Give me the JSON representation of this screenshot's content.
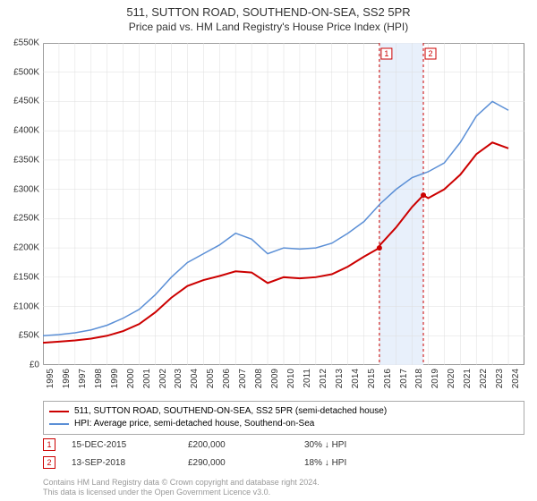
{
  "title": "511, SUTTON ROAD, SOUTHEND-ON-SEA, SS2 5PR",
  "subtitle": "Price paid vs. HM Land Registry's House Price Index (HPI)",
  "chart": {
    "type": "line",
    "background_color": "#ffffff",
    "axis_color": "#888888",
    "grid_color": "#dddddd",
    "label_fontsize": 10,
    "title_fontsize": 13,
    "subtitle_fontsize": 12,
    "ylim": [
      0,
      550000
    ],
    "ytick_step": 50000,
    "yticks": [
      "£0",
      "£50K",
      "£100K",
      "£150K",
      "£200K",
      "£250K",
      "£300K",
      "£350K",
      "£400K",
      "£450K",
      "£500K",
      "£550K"
    ],
    "x_years": [
      1995,
      1996,
      1997,
      1998,
      1999,
      2000,
      2001,
      2002,
      2003,
      2004,
      2005,
      2006,
      2007,
      2008,
      2009,
      2010,
      2011,
      2012,
      2013,
      2014,
      2015,
      2016,
      2017,
      2018,
      2019,
      2020,
      2021,
      2022,
      2023,
      2024
    ],
    "band": {
      "start_year": 2015.96,
      "end_year": 2018.7,
      "color": "#e8f0fb"
    },
    "markers": [
      {
        "n": "1",
        "year": 2015.96,
        "color": "#cc0000"
      },
      {
        "n": "2",
        "year": 2018.7,
        "color": "#cc0000"
      }
    ],
    "series": [
      {
        "name": "511, SUTTON ROAD, SOUTHEND-ON-SEA, SS2 5PR (semi-detached house)",
        "color": "#cc0000",
        "line_width": 2,
        "points": [
          [
            1995,
            38000
          ],
          [
            1996,
            40000
          ],
          [
            1997,
            42000
          ],
          [
            1998,
            45000
          ],
          [
            1999,
            50000
          ],
          [
            2000,
            58000
          ],
          [
            2001,
            70000
          ],
          [
            2002,
            90000
          ],
          [
            2003,
            115000
          ],
          [
            2004,
            135000
          ],
          [
            2005,
            145000
          ],
          [
            2006,
            152000
          ],
          [
            2007,
            160000
          ],
          [
            2008,
            158000
          ],
          [
            2009,
            140000
          ],
          [
            2010,
            150000
          ],
          [
            2011,
            148000
          ],
          [
            2012,
            150000
          ],
          [
            2013,
            155000
          ],
          [
            2014,
            168000
          ],
          [
            2015,
            185000
          ],
          [
            2015.96,
            200000
          ],
          [
            2016,
            205000
          ],
          [
            2017,
            235000
          ],
          [
            2018,
            270000
          ],
          [
            2018.7,
            290000
          ],
          [
            2019,
            285000
          ],
          [
            2020,
            300000
          ],
          [
            2021,
            325000
          ],
          [
            2022,
            360000
          ],
          [
            2023,
            380000
          ],
          [
            2024,
            370000
          ]
        ],
        "marker_points": [
          [
            2015.96,
            200000
          ],
          [
            2018.7,
            290000
          ]
        ]
      },
      {
        "name": "HPI: Average price, semi-detached house, Southend-on-Sea",
        "color": "#5b8fd6",
        "line_width": 1.5,
        "points": [
          [
            1995,
            50000
          ],
          [
            1996,
            52000
          ],
          [
            1997,
            55000
          ],
          [
            1998,
            60000
          ],
          [
            1999,
            68000
          ],
          [
            2000,
            80000
          ],
          [
            2001,
            95000
          ],
          [
            2002,
            120000
          ],
          [
            2003,
            150000
          ],
          [
            2004,
            175000
          ],
          [
            2005,
            190000
          ],
          [
            2006,
            205000
          ],
          [
            2007,
            225000
          ],
          [
            2008,
            215000
          ],
          [
            2009,
            190000
          ],
          [
            2010,
            200000
          ],
          [
            2011,
            198000
          ],
          [
            2012,
            200000
          ],
          [
            2013,
            208000
          ],
          [
            2014,
            225000
          ],
          [
            2015,
            245000
          ],
          [
            2016,
            275000
          ],
          [
            2017,
            300000
          ],
          [
            2018,
            320000
          ],
          [
            2019,
            330000
          ],
          [
            2020,
            345000
          ],
          [
            2021,
            380000
          ],
          [
            2022,
            425000
          ],
          [
            2023,
            450000
          ],
          [
            2024,
            435000
          ]
        ]
      }
    ]
  },
  "legend": {
    "items": [
      {
        "color": "#cc0000",
        "width": 2,
        "label": "511, SUTTON ROAD, SOUTHEND-ON-SEA, SS2 5PR (semi-detached house)"
      },
      {
        "color": "#5b8fd6",
        "width": 1.5,
        "label": "HPI: Average price, semi-detached house, Southend-on-Sea"
      }
    ]
  },
  "sale_rows": [
    {
      "n": "1",
      "color": "#cc0000",
      "date": "15-DEC-2015",
      "price": "£200,000",
      "delta": "30% ↓ HPI"
    },
    {
      "n": "2",
      "color": "#cc0000",
      "date": "13-SEP-2018",
      "price": "£290,000",
      "delta": "18% ↓ HPI"
    }
  ],
  "footer_line1": "Contains HM Land Registry data © Crown copyright and database right 2024.",
  "footer_line2": "This data is licensed under the Open Government Licence v3.0."
}
